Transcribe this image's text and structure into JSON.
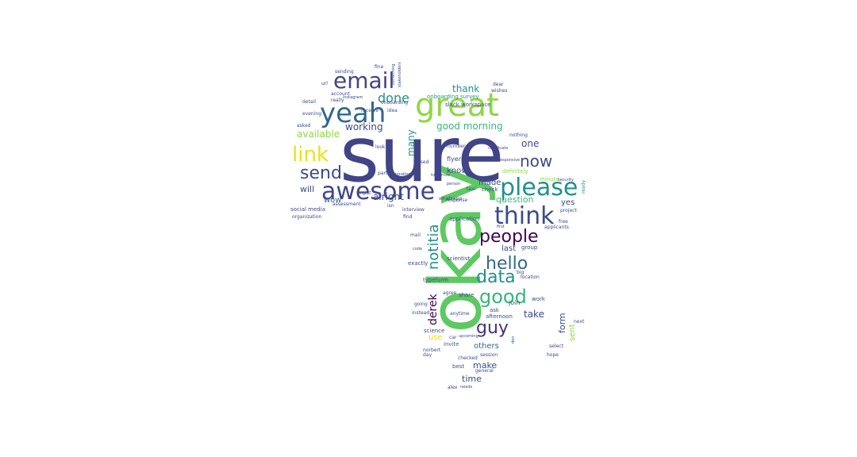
{
  "palette": {
    "navy": "#3b4a8c",
    "indigo": "#414487",
    "purple": "#46327e",
    "deep": "#440154",
    "blue": "#31688e",
    "teal": "#21918c",
    "sea": "#2a788e",
    "green": "#35b779",
    "lime": "#5ec962",
    "yellowgreen": "#90d743",
    "yellow": "#c8e020",
    "gold": "#e5e419"
  },
  "words": [
    "sure",
    "okay",
    "great",
    "yeah",
    "email",
    "awesome",
    "please",
    "think",
    "link",
    "send",
    "people",
    "hello",
    "good",
    "data",
    "now",
    "guy",
    "notitia",
    "derek",
    "done",
    "thank",
    "one",
    "many",
    "working",
    "good morning",
    "available",
    "will",
    "alright",
    "wow",
    "question",
    "made",
    "know",
    "yes",
    "last",
    "take",
    "form",
    "sent",
    "make",
    "time",
    "others",
    "use",
    "invite",
    "onboarding survey",
    "slack workspace",
    "flyers",
    "responsive",
    "certificate",
    "application",
    "group",
    "scientist",
    "typeform",
    "share",
    "social media",
    "assessment",
    "organization",
    "exactly",
    "whatsapp",
    "response",
    "check",
    "taxi",
    "isn",
    "interview",
    "find",
    "mail",
    "code",
    "definitely",
    "minute",
    "ready",
    "security",
    "project",
    "applicants",
    "free",
    "work",
    "join",
    "ask",
    "location",
    "big",
    "afternoon",
    "next",
    "select",
    "hope",
    "don",
    "session",
    "general",
    "needs",
    "alex",
    "best",
    "norbert",
    "day",
    "checked",
    "anytime",
    "science",
    "instead",
    "going",
    "agree",
    "car",
    "instagram",
    "account",
    "really",
    "detail",
    "evening",
    "asked",
    "url",
    "sending",
    "idea",
    "onboarding",
    "fine",
    "something",
    "stakeholders",
    "dear",
    "wishes",
    "nothing",
    "person",
    "number",
    "used",
    "part",
    "input",
    "look",
    "receive",
    "first",
    "upcoming",
    "tomorrow",
    "integration"
  ]
}
